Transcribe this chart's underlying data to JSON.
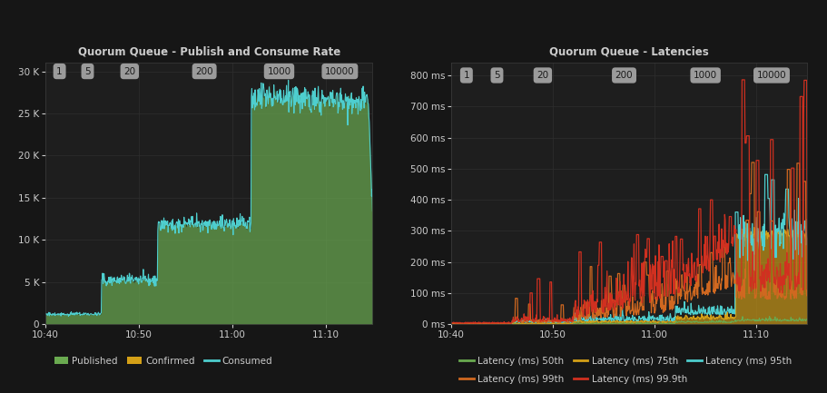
{
  "bg_color": "#161616",
  "panel_bg": "#1e1e1e",
  "grid_color": "#2e2e2e",
  "text_color": "#cccccc",
  "left_title": "Quorum Queue - Publish and Consume Rate",
  "right_title": "Quorum Queue - Latencies",
  "phase_labels": [
    "1",
    "5",
    "20",
    "200",
    "1000",
    "10000"
  ],
  "xtick_labels": [
    "10:40",
    "10:50",
    "11:00",
    "11:10"
  ],
  "xtick_positions": [
    0,
    10,
    20,
    30
  ],
  "left_yticks": [
    0,
    5000,
    10000,
    15000,
    20000,
    25000,
    30000
  ],
  "left_ytick_labels": [
    "0",
    "5 K",
    "10 K",
    "15 K",
    "20 K",
    "25 K",
    "30 K"
  ],
  "left_ylim": [
    0,
    31000
  ],
  "right_yticks": [
    0,
    100,
    200,
    300,
    400,
    500,
    600,
    700,
    800
  ],
  "right_ytick_labels": [
    "0 ms",
    "100 ms",
    "200 ms",
    "300 ms",
    "400 ms",
    "500 ms",
    "600 ms",
    "700 ms",
    "800 ms"
  ],
  "right_ylim": [
    0,
    840
  ],
  "published_color": "#6aaa50",
  "confirmed_color": "#d4a017",
  "consumed_color": "#4ecece",
  "lat50_color": "#6aaa50",
  "lat75_color": "#d4a017",
  "lat95_color": "#4ecece",
  "lat99_color": "#d06820",
  "lat999_color": "#d03020",
  "phase_label_bg": "#aaaaaa",
  "phase_label_text": "#1a1a1a",
  "left_phase_x": [
    1.5,
    4.5,
    9.0,
    17.0,
    25.0,
    31.5
  ],
  "right_phase_x": [
    1.5,
    4.5,
    9.0,
    17.0,
    25.0,
    31.5
  ]
}
